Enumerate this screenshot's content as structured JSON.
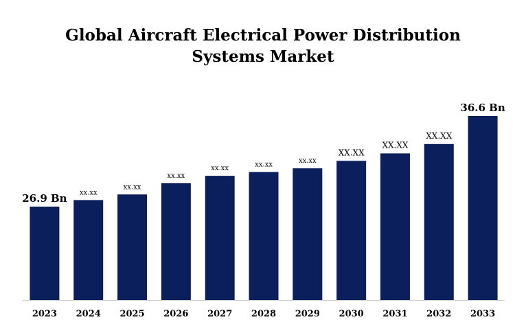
{
  "chart_data": {
    "type": "bar",
    "title_lines": [
      "Global Aircraft Electrical Power Distribution",
      "Systems Market"
    ],
    "categories": [
      "2023",
      "2024",
      "2025",
      "2026",
      "2027",
      "2028",
      "2029",
      "2030",
      "2031",
      "2032",
      "2033"
    ],
    "values": [
      26.9,
      27.6,
      28.2,
      29.4,
      30.2,
      30.6,
      31.0,
      31.8,
      32.6,
      33.6,
      36.6
    ],
    "data_labels": [
      "26.9 Bn",
      "xx.xx",
      "xx.xx",
      "xx.xx",
      "xx.xx",
      "xx.xx",
      "xx.xx",
      "XX.XX",
      "XX.XX",
      "XX.XX",
      "36.6 Bn"
    ],
    "ylim": [
      16.9,
      36.6
    ],
    "grid": false,
    "legend": "none",
    "bar_color": "#0a1f5c",
    "axis_color": "#c8c8c8"
  }
}
